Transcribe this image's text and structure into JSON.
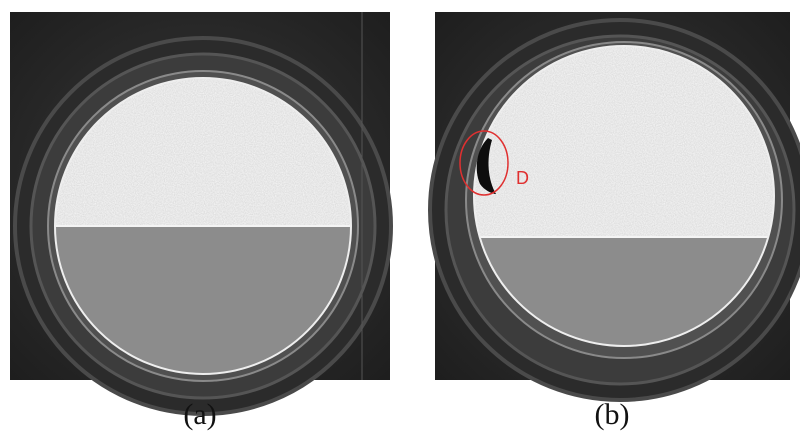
{
  "panels": [
    {
      "label": "(a)"
    },
    {
      "label": "(b)",
      "annotation": "D"
    }
  ]
}
